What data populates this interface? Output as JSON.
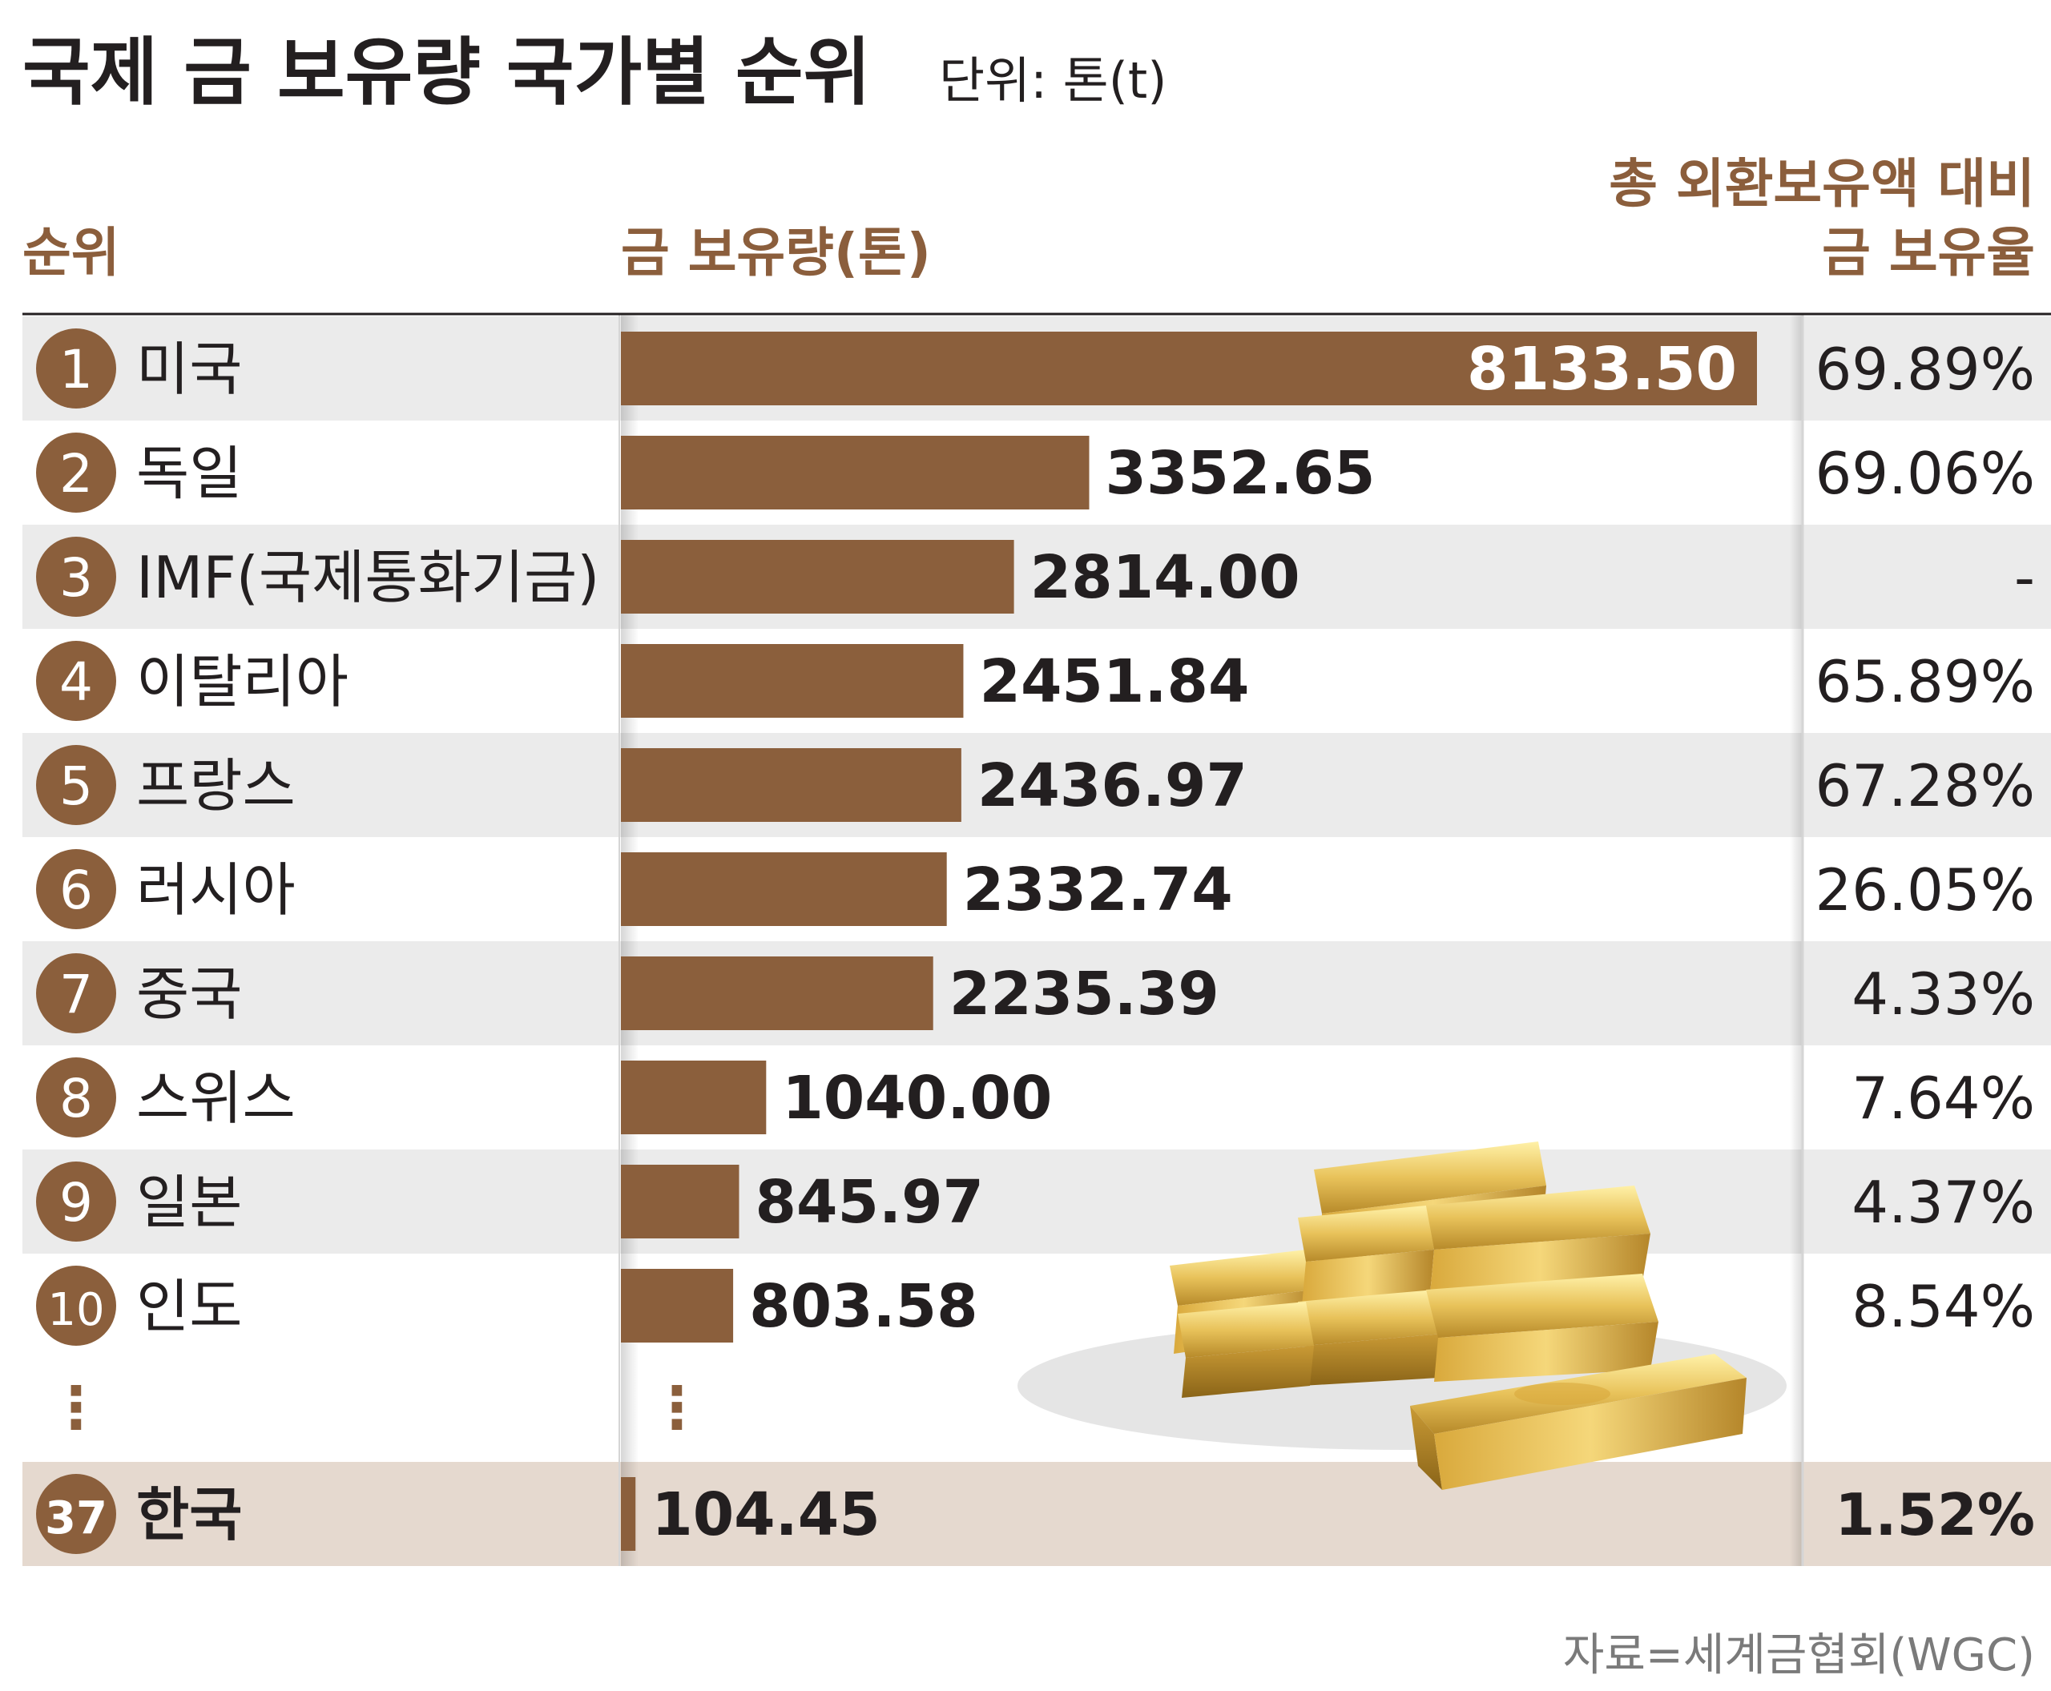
{
  "header": {
    "title": "국제 금 보유량 국가별 순위",
    "unit": "단위: 톤(t)"
  },
  "columns": {
    "rank": "순위",
    "holdings": "금 보유량(톤)",
    "ratio_line1": "총 외환보유액 대비",
    "ratio_line2": "금 보유율"
  },
  "ellipsis": "⋮",
  "source": "자료=세계금협회(WGC)",
  "colors": {
    "bar": "#8b5f3c",
    "accent_text": "#8b5e3c",
    "badge": "#8b5f3c",
    "row_stripe": "#ebebeb",
    "highlight_row": "#e5d9cf",
    "divider": "#d5d5d5"
  },
  "chart_data": {
    "type": "bar",
    "orientation": "horizontal",
    "title": "국제 금 보유량 국가별 순위",
    "xlim": [
      0,
      8133.5
    ],
    "grid": false,
    "rows": [
      {
        "rank": "1",
        "country": "미국",
        "value": 8133.5,
        "value_label": "8133.50",
        "ratio": "69.89%",
        "label_inside": true
      },
      {
        "rank": "2",
        "country": "독일",
        "value": 3352.65,
        "value_label": "3352.65",
        "ratio": "69.06%"
      },
      {
        "rank": "3",
        "country": "IMF(국제통화기금)",
        "value": 2814.0,
        "value_label": "2814.00",
        "ratio": "-"
      },
      {
        "rank": "4",
        "country": "이탈리아",
        "value": 2451.84,
        "value_label": "2451.84",
        "ratio": "65.89%"
      },
      {
        "rank": "5",
        "country": "프랑스",
        "value": 2436.97,
        "value_label": "2436.97",
        "ratio": "67.28%"
      },
      {
        "rank": "6",
        "country": "러시아",
        "value": 2332.74,
        "value_label": "2332.74",
        "ratio": "26.05%"
      },
      {
        "rank": "7",
        "country": "중국",
        "value": 2235.39,
        "value_label": "2235.39",
        "ratio": "4.33%"
      },
      {
        "rank": "8",
        "country": "스위스",
        "value": 1040.0,
        "value_label": "1040.00",
        "ratio": "7.64%"
      },
      {
        "rank": "9",
        "country": "일본",
        "value": 845.97,
        "value_label": "845.97",
        "ratio": "4.37%"
      },
      {
        "rank": "10",
        "country": "인도",
        "value": 803.58,
        "value_label": "803.58",
        "ratio": "8.54%"
      },
      {
        "rank": "37",
        "country": "한국",
        "value": 104.45,
        "value_label": "104.45",
        "ratio": "1.52%",
        "highlight": true
      }
    ]
  }
}
